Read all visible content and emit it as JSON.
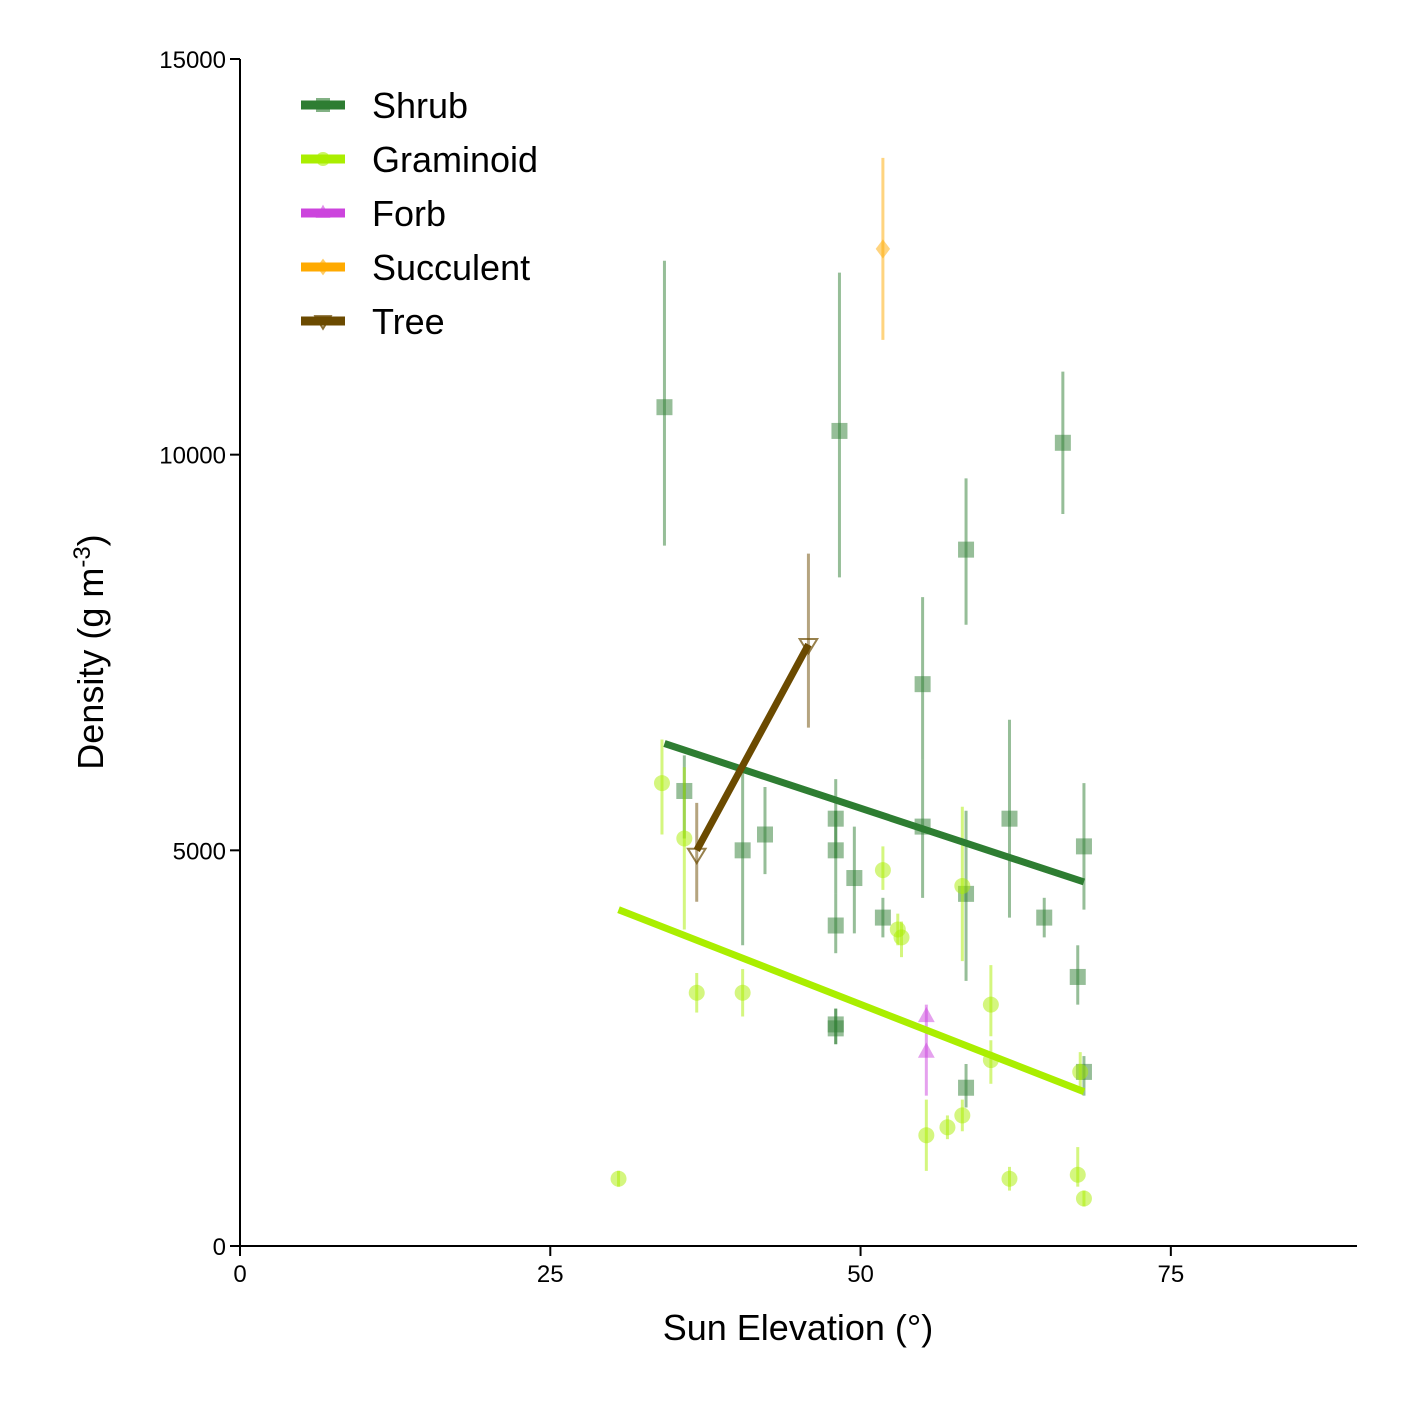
{
  "chart_data": {
    "type": "scatter",
    "xlabel": "Sun Elevation (°)",
    "ylabel_main": "Density (g m",
    "ylabel_sup": "-3",
    "ylabel_close": ")",
    "xlim": [
      0,
      90
    ],
    "ylim": [
      0,
      15000
    ],
    "x_ticks": [
      0,
      25,
      50,
      75
    ],
    "x_tick_labels": [
      "0",
      "25",
      "50",
      "75"
    ],
    "y_ticks": [
      0,
      5000,
      10000,
      15000
    ],
    "y_tick_labels": [
      "0",
      "5000",
      "10000",
      "15000"
    ],
    "grid": false,
    "legend_position": "top-left",
    "series": [
      {
        "name": "Shrub",
        "color": "#2e7d32",
        "marker": "square",
        "points": [
          {
            "x": 34.2,
            "y": 10600,
            "lo": 8850,
            "hi": 12450
          },
          {
            "x": 35.8,
            "y": 5750,
            "lo": 5150,
            "hi": 6200
          },
          {
            "x": 40.5,
            "y": 5000,
            "lo": 3800,
            "hi": 6100
          },
          {
            "x": 42.3,
            "y": 5200,
            "lo": 4700,
            "hi": 5800
          },
          {
            "x": 48.0,
            "y": 5400,
            "lo": 4900,
            "hi": 5900
          },
          {
            "x": 48.0,
            "y": 5000,
            "lo": 4450,
            "hi": 5500
          },
          {
            "x": 48.0,
            "y": 4050,
            "lo": 3700,
            "hi": 4450
          },
          {
            "x": 48.0,
            "y": 2800,
            "lo": 2550,
            "hi": 3000
          },
          {
            "x": 48.0,
            "y": 2750,
            "lo": 2550,
            "hi": 3000
          },
          {
            "x": 48.3,
            "y": 10300,
            "lo": 8450,
            "hi": 12300
          },
          {
            "x": 49.5,
            "y": 4650,
            "lo": 3950,
            "hi": 5300
          },
          {
            "x": 51.8,
            "y": 4150,
            "lo": 3900,
            "hi": 4400
          },
          {
            "x": 55.0,
            "y": 7100,
            "lo": 6150,
            "hi": 8200
          },
          {
            "x": 55.0,
            "y": 5300,
            "lo": 4400,
            "hi": 6150
          },
          {
            "x": 58.5,
            "y": 8800,
            "lo": 7850,
            "hi": 9700
          },
          {
            "x": 58.5,
            "y": 4450,
            "lo": 3350,
            "hi": 5500
          },
          {
            "x": 58.5,
            "y": 2000,
            "lo": 1750,
            "hi": 2300
          },
          {
            "x": 62.0,
            "y": 5400,
            "lo": 4150,
            "hi": 6650
          },
          {
            "x": 64.8,
            "y": 4150,
            "lo": 3900,
            "hi": 4400
          },
          {
            "x": 66.3,
            "y": 10150,
            "lo": 9250,
            "hi": 11050
          },
          {
            "x": 67.5,
            "y": 3400,
            "lo": 3050,
            "hi": 3800
          },
          {
            "x": 68.0,
            "y": 5050,
            "lo": 4250,
            "hi": 5850
          },
          {
            "x": 68.0,
            "y": 2200,
            "lo": 1900,
            "hi": 2400
          }
        ],
        "fit": {
          "x1": 34.2,
          "y1": 6350,
          "x2": 68.0,
          "y2": 4600
        }
      },
      {
        "name": "Graminoid",
        "color": "#aaee00",
        "marker": "circle",
        "points": [
          {
            "x": 30.5,
            "y": 850,
            "lo": 750,
            "hi": 950
          },
          {
            "x": 34.0,
            "y": 5850,
            "lo": 5200,
            "hi": 6400
          },
          {
            "x": 35.8,
            "y": 5150,
            "lo": 4000,
            "hi": 6050
          },
          {
            "x": 36.8,
            "y": 3200,
            "lo": 2950,
            "hi": 3450
          },
          {
            "x": 40.5,
            "y": 3200,
            "lo": 2900,
            "hi": 3500
          },
          {
            "x": 51.8,
            "y": 4750,
            "lo": 4500,
            "hi": 5050
          },
          {
            "x": 53.0,
            "y": 4000,
            "lo": 3800,
            "hi": 4200
          },
          {
            "x": 53.3,
            "y": 3900,
            "lo": 3650,
            "hi": 4100
          },
          {
            "x": 55.3,
            "y": 1400,
            "lo": 950,
            "hi": 1850
          },
          {
            "x": 57.0,
            "y": 1500,
            "lo": 1350,
            "hi": 1650
          },
          {
            "x": 58.2,
            "y": 1650,
            "lo": 1450,
            "hi": 1850
          },
          {
            "x": 58.2,
            "y": 4550,
            "lo": 3600,
            "hi": 5550
          },
          {
            "x": 60.5,
            "y": 3050,
            "lo": 2650,
            "hi": 3550
          },
          {
            "x": 60.5,
            "y": 2350,
            "lo": 2050,
            "hi": 2600
          },
          {
            "x": 62.0,
            "y": 850,
            "lo": 700,
            "hi": 1000
          },
          {
            "x": 67.5,
            "y": 900,
            "lo": 750,
            "hi": 1250
          },
          {
            "x": 67.7,
            "y": 2200,
            "lo": 1950,
            "hi": 2450
          },
          {
            "x": 68.0,
            "y": 600,
            "lo": 500,
            "hi": 700
          }
        ],
        "fit": {
          "x1": 30.5,
          "y1": 4250,
          "x2": 68.0,
          "y2": 1950
        }
      },
      {
        "name": "Forb",
        "color": "#cc44dd",
        "marker": "triangle",
        "points": [
          {
            "x": 55.3,
            "y": 2900,
            "lo": 2700,
            "hi": 3050
          },
          {
            "x": 55.3,
            "y": 2450,
            "lo": 1900,
            "hi": 2700
          }
        ]
      },
      {
        "name": "Succulent",
        "color": "#ffaa00",
        "marker": "diamond",
        "points": [
          {
            "x": 51.8,
            "y": 12600,
            "lo": 11450,
            "hi": 13750
          }
        ]
      },
      {
        "name": "Tree",
        "color": "#6b4a00",
        "marker": "triangle-down",
        "points": [
          {
            "x": 36.8,
            "y": 4950,
            "lo": 4350,
            "hi": 5600
          },
          {
            "x": 45.8,
            "y": 7600,
            "lo": 6550,
            "hi": 8750
          }
        ],
        "fit": {
          "x1": 36.8,
          "y1": 5000,
          "x2": 45.8,
          "y2": 7600
        }
      }
    ]
  }
}
